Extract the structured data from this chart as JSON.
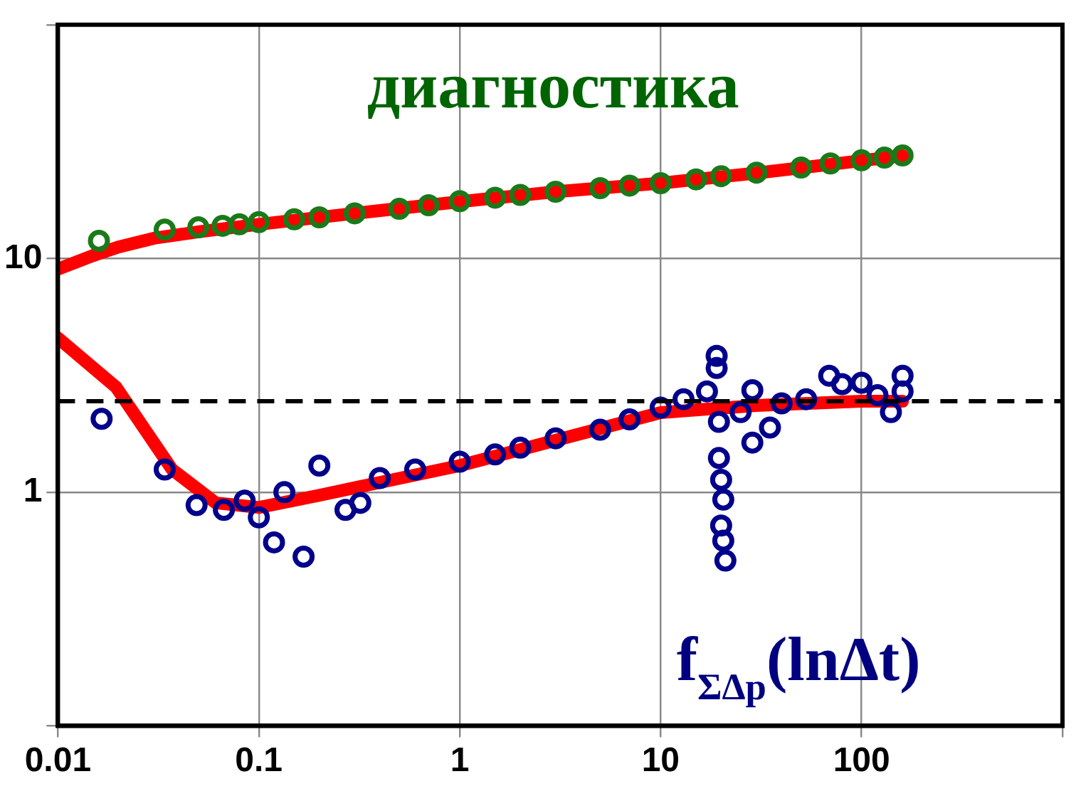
{
  "chart_data": {
    "type": "scatter",
    "title": "диагностика",
    "annotations": [
      "f$_{ΣΔp}$(lnΔt)"
    ],
    "xlim": [
      0.01,
      1000
    ],
    "ylim": [
      0.1,
      100
    ],
    "xticks": [
      0.01,
      0.1,
      1,
      10,
      100,
      {
        "value": 1000,
        "label": null
      }
    ],
    "yticks": [
      {
        "value": 0.1,
        "label": null
      },
      1,
      10,
      {
        "value": 100,
        "label": null
      }
    ],
    "log": "xy",
    "grid": true,
    "legend": false,
    "ref_lines": [
      {
        "axis": "y",
        "value": 2.45,
        "color": "#000000",
        "line_style": "dashed"
      }
    ],
    "series": [
      {
        "type": "scatter",
        "marker": "circle",
        "color": "#1a7a1a",
        "x": [
          0.016,
          0.034,
          0.05,
          0.066,
          0.08,
          0.1,
          0.15,
          0.2,
          0.3,
          0.5,
          0.7,
          1,
          1.5,
          2,
          3,
          5,
          7,
          10,
          15,
          20,
          30,
          50,
          70,
          100,
          130,
          160
        ],
        "values": [
          11.9,
          13.3,
          13.6,
          13.8,
          14,
          14.3,
          14.7,
          15,
          15.6,
          16.3,
          16.9,
          17.6,
          18.2,
          18.7,
          19.3,
          20,
          20.5,
          21,
          21.8,
          22.5,
          23.3,
          24.5,
          25.5,
          26.3,
          27,
          27.6
        ]
      },
      {
        "type": "scatter",
        "marker": "circle",
        "color": "#00008b",
        "x": [
          0.0165,
          0.034,
          0.049,
          0.067,
          0.085,
          0.1,
          0.119,
          0.134,
          0.167,
          0.2,
          0.27,
          0.32,
          0.4,
          0.6,
          1,
          1.5,
          2,
          3,
          5,
          7,
          10,
          13,
          17,
          19,
          19,
          19.5,
          19.5,
          20,
          20.5,
          20,
          20.5,
          21,
          25,
          28.6,
          28.6,
          35,
          40,
          53,
          69,
          80,
          100,
          120,
          140,
          160,
          160
        ],
        "values": [
          2.06,
          1.25,
          0.88,
          0.84,
          0.92,
          0.78,
          0.61,
          1.0,
          0.53,
          1.3,
          0.84,
          0.9,
          1.15,
          1.25,
          1.35,
          1.45,
          1.55,
          1.7,
          1.85,
          2.05,
          2.3,
          2.5,
          2.7,
          3.83,
          3.4,
          2.0,
          1.4,
          1.13,
          0.93,
          0.72,
          0.62,
          0.51,
          2.2,
          2.73,
          1.63,
          1.89,
          2.4,
          2.5,
          3.15,
          2.9,
          2.94,
          2.6,
          2.2,
          3.15,
          2.7
        ]
      },
      {
        "type": "line",
        "marker": "none",
        "color": "#ff0000",
        "x": [
          0.01,
          0.015,
          0.02,
          0.03,
          0.05,
          0.1,
          0.3,
          1,
          3,
          10,
          30,
          100,
          160
        ],
        "values": [
          9,
          10.3,
          11.2,
          12.2,
          13,
          14,
          15.6,
          17.5,
          19.3,
          21,
          23.2,
          26.2,
          27.5
        ]
      },
      {
        "type": "line",
        "marker": "none",
        "color": "#ff0000",
        "x": [
          0.01,
          0.0195,
          0.037,
          0.061,
          0.1,
          0.2,
          1,
          10,
          30,
          100,
          160
        ],
        "values": [
          4.57,
          2.81,
          1.25,
          0.9,
          0.86,
          0.97,
          1.3,
          2.19,
          2.35,
          2.45,
          2.45
        ]
      }
    ]
  }
}
